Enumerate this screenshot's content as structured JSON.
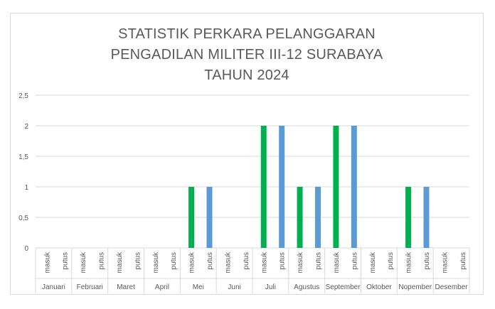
{
  "chart_data": {
    "type": "bar",
    "title_lines": [
      "STATISTIK PERKARA PELANGGARAN",
      "PENGADILAN MILITER III-12 SURABAYA",
      "TAHUN 2024"
    ],
    "y_ticks": [
      "0",
      "0,5",
      "1",
      "1,5",
      "2",
      "2,5"
    ],
    "ylim": [
      0,
      2.5
    ],
    "grid": true,
    "groups": [
      "Januari",
      "Februari",
      "Maret",
      "April",
      "Mei",
      "Juni",
      "Juli",
      "Agustus",
      "September",
      "Oktober",
      "Nopember",
      "Desember"
    ],
    "subcategories": [
      "masuk",
      "putus"
    ],
    "series": [
      {
        "values_masuk": [
          0,
          0,
          0,
          0,
          1,
          0,
          2,
          1,
          2,
          0,
          1,
          0
        ]
      },
      {
        "values_putus": [
          0,
          0,
          0,
          0,
          1,
          0,
          2,
          1,
          2,
          0,
          1,
          0
        ]
      }
    ],
    "colors": {
      "masuk": "#00b050",
      "putus": "#5b9bd5",
      "grid": "#d9d9d9",
      "text": "#595959"
    }
  }
}
